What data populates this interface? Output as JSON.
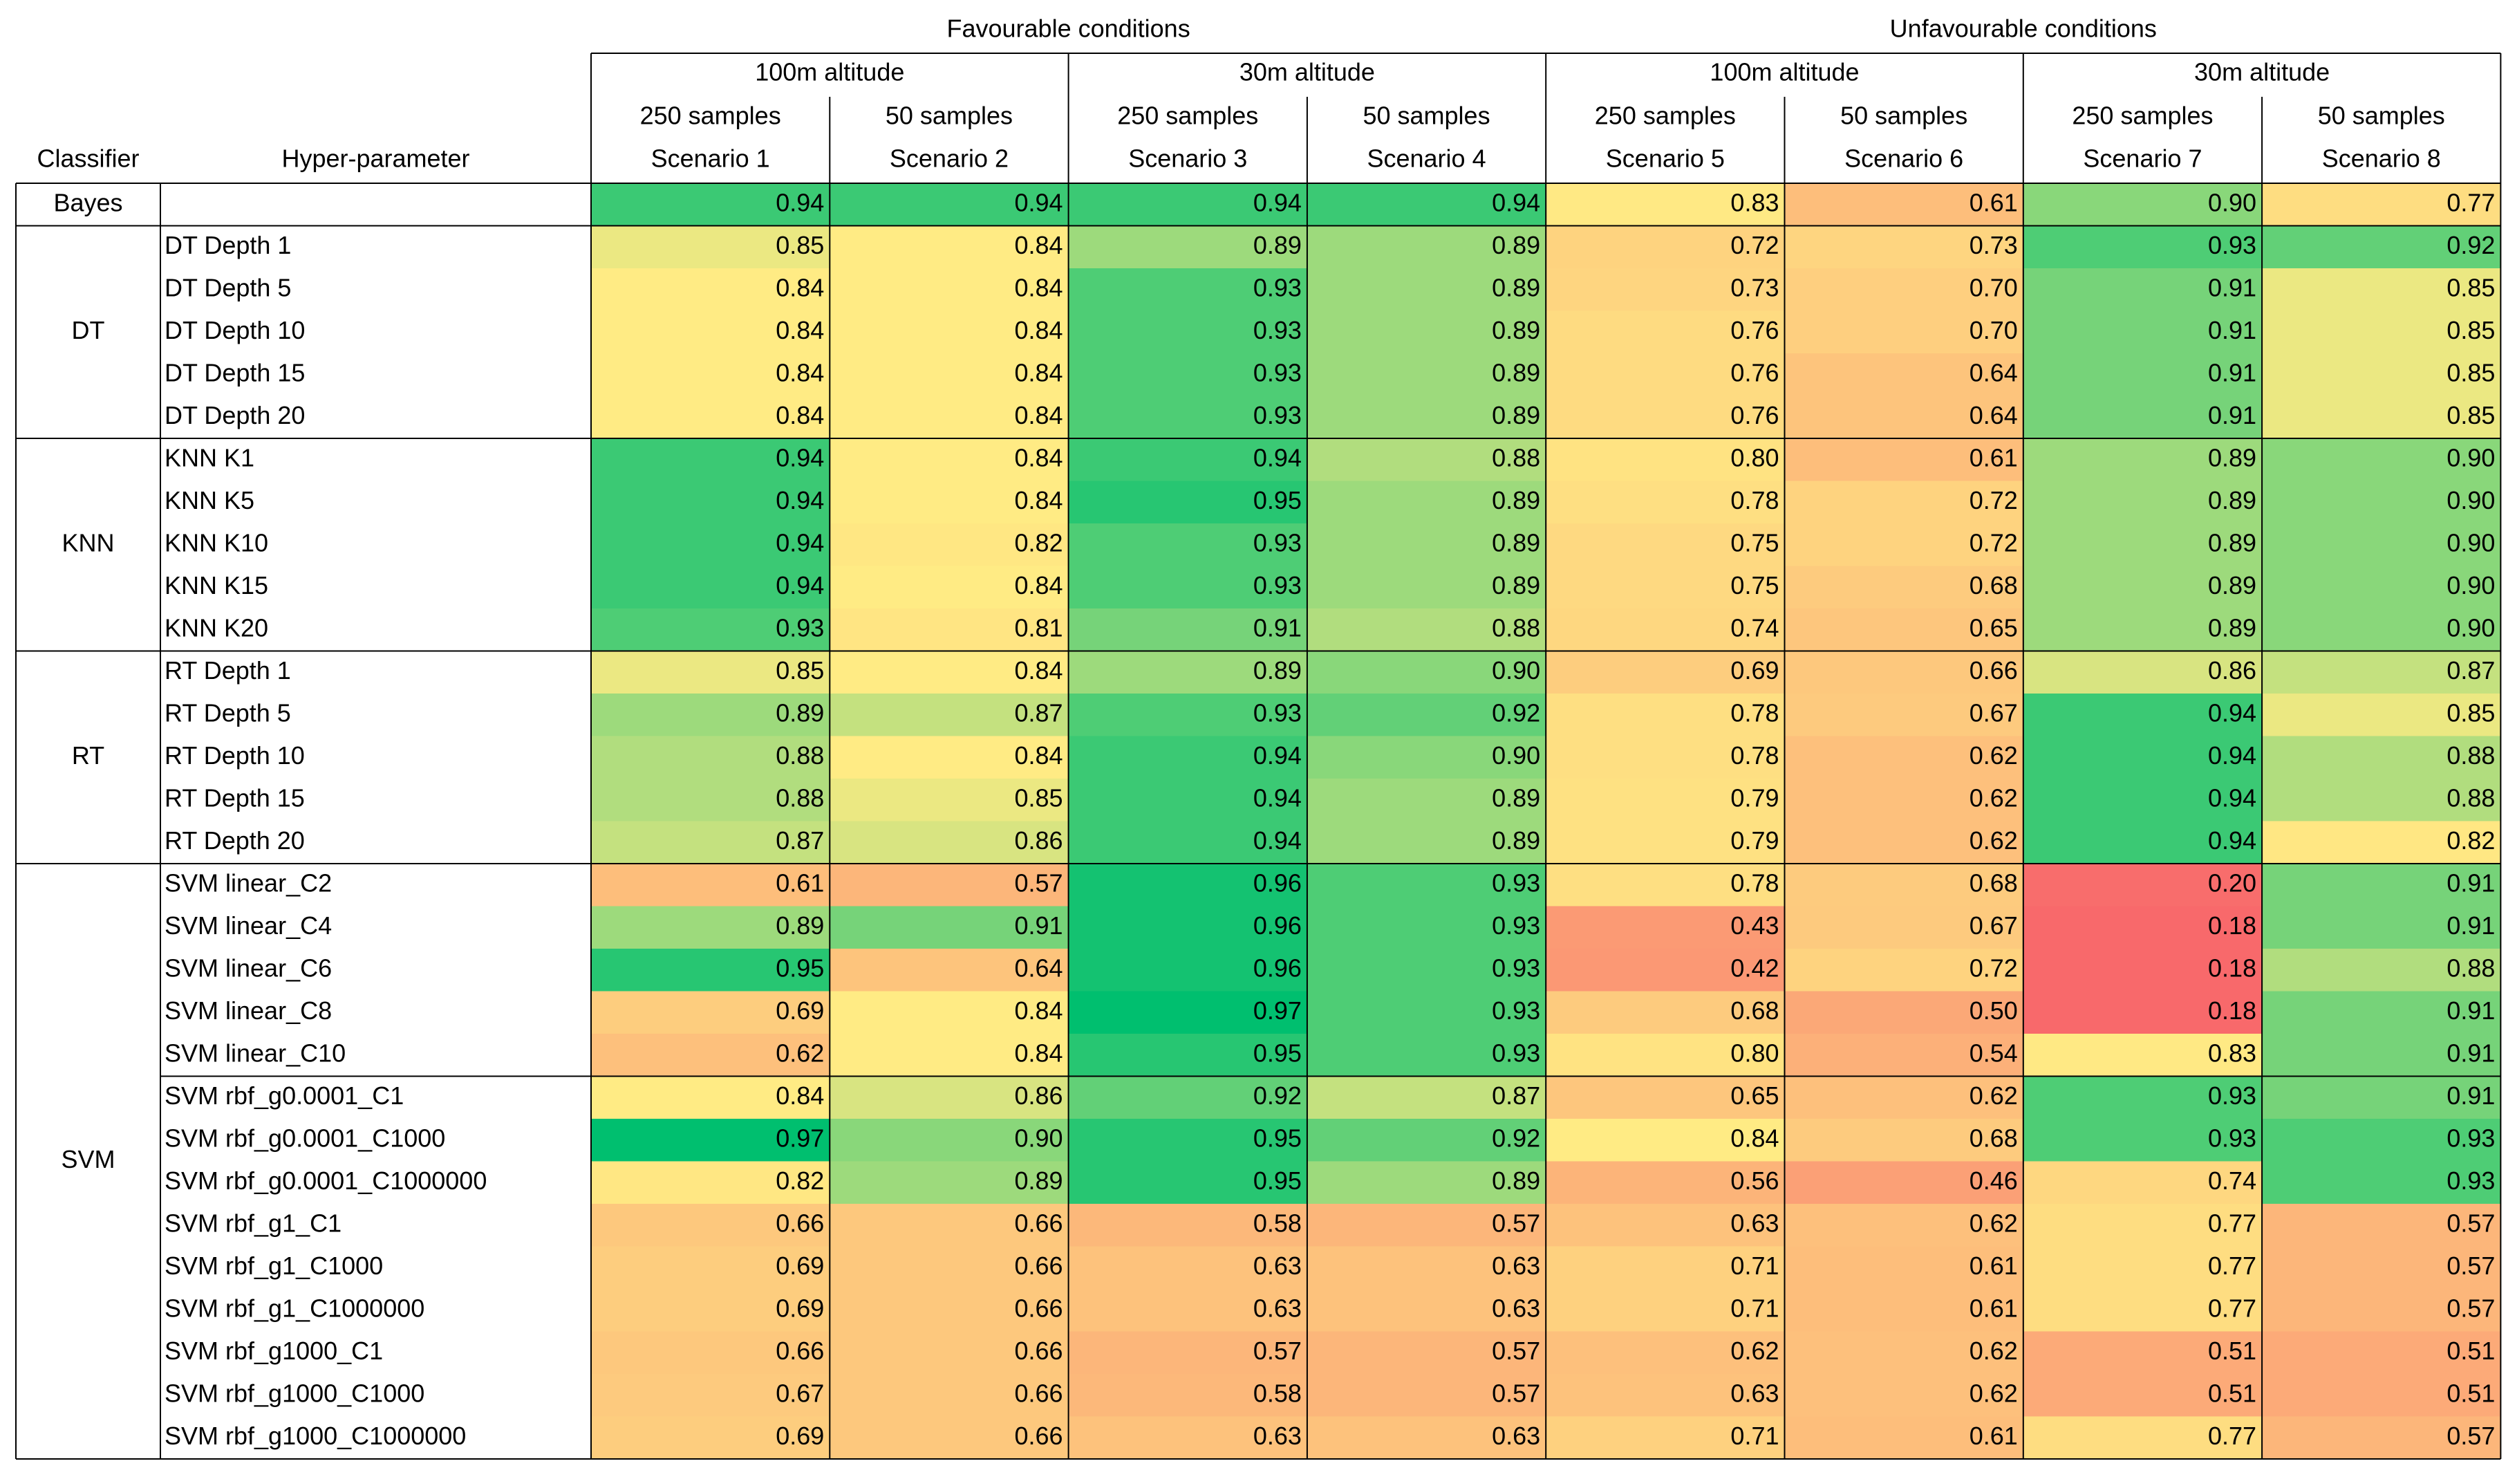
{
  "header": {
    "classifier_label": "Classifier",
    "hyperparameter_label": "Hyper-parameter",
    "conditions": [
      "Favourable conditions",
      "Unfavourable conditions"
    ],
    "altitudes": [
      "100m altitude",
      "30m altitude",
      "100m altitude",
      "30m altitude"
    ],
    "samples": [
      "250 samples",
      "50 samples",
      "250 samples",
      "50 samples",
      "250 samples",
      "50 samples",
      "250 samples",
      "50 samples"
    ],
    "scenarios": [
      "Scenario 1",
      "Scenario 2",
      "Scenario 3",
      "Scenario 4",
      "Scenario 5",
      "Scenario 6",
      "Scenario 7",
      "Scenario 8"
    ]
  },
  "color_scale": {
    "min_color": "#F8696B",
    "mid_color": "#FFEB84",
    "max_color": "#00BF6F"
  },
  "groups": [
    {
      "classifier": "Bayes",
      "blocks": [
        [
          {
            "values": [
              "0.94",
              "0.94",
              "0.94",
              "0.94",
              "0.83",
              "0.61",
              "0.90",
              "0.77"
            ]
          }
        ]
      ]
    },
    {
      "classifier": "DT",
      "blocks": [
        [
          {
            "name": "DT Depth 1",
            "values": [
              "0.85",
              "0.84",
              "0.89",
              "0.89",
              "0.72",
              "0.73",
              "0.93",
              "0.92"
            ]
          },
          {
            "name": "DT Depth 5",
            "values": [
              "0.84",
              "0.84",
              "0.93",
              "0.89",
              "0.73",
              "0.70",
              "0.91",
              "0.85"
            ]
          },
          {
            "name": "DT Depth 10",
            "values": [
              "0.84",
              "0.84",
              "0.93",
              "0.89",
              "0.76",
              "0.70",
              "0.91",
              "0.85"
            ]
          },
          {
            "name": "DT Depth 15",
            "values": [
              "0.84",
              "0.84",
              "0.93",
              "0.89",
              "0.76",
              "0.64",
              "0.91",
              "0.85"
            ]
          },
          {
            "name": "DT Depth 20",
            "values": [
              "0.84",
              "0.84",
              "0.93",
              "0.89",
              "0.76",
              "0.64",
              "0.91",
              "0.85"
            ]
          }
        ]
      ]
    },
    {
      "classifier": "KNN",
      "blocks": [
        [
          {
            "name": "KNN K1",
            "values": [
              "0.94",
              "0.84",
              "0.94",
              "0.88",
              "0.80",
              "0.61",
              "0.89",
              "0.90"
            ]
          },
          {
            "name": "KNN K5",
            "values": [
              "0.94",
              "0.84",
              "0.95",
              "0.89",
              "0.78",
              "0.72",
              "0.89",
              "0.90"
            ]
          },
          {
            "name": "KNN K10",
            "values": [
              "0.94",
              "0.82",
              "0.93",
              "0.89",
              "0.75",
              "0.72",
              "0.89",
              "0.90"
            ]
          },
          {
            "name": "KNN K15",
            "values": [
              "0.94",
              "0.84",
              "0.93",
              "0.89",
              "0.75",
              "0.68",
              "0.89",
              "0.90"
            ]
          },
          {
            "name": "KNN K20",
            "values": [
              "0.93",
              "0.81",
              "0.91",
              "0.88",
              "0.74",
              "0.65",
              "0.89",
              "0.90"
            ]
          }
        ]
      ]
    },
    {
      "classifier": "RT",
      "blocks": [
        [
          {
            "name": "RT Depth 1",
            "values": [
              "0.85",
              "0.84",
              "0.89",
              "0.90",
              "0.69",
              "0.66",
              "0.86",
              "0.87"
            ]
          },
          {
            "name": "RT Depth 5",
            "values": [
              "0.89",
              "0.87",
              "0.93",
              "0.92",
              "0.78",
              "0.67",
              "0.94",
              "0.85"
            ]
          },
          {
            "name": "RT Depth 10",
            "values": [
              "0.88",
              "0.84",
              "0.94",
              "0.90",
              "0.78",
              "0.62",
              "0.94",
              "0.88"
            ]
          },
          {
            "name": "RT Depth 15",
            "values": [
              "0.88",
              "0.85",
              "0.94",
              "0.89",
              "0.79",
              "0.62",
              "0.94",
              "0.88"
            ]
          },
          {
            "name": "RT Depth 20",
            "values": [
              "0.87",
              "0.86",
              "0.94",
              "0.89",
              "0.79",
              "0.62",
              "0.94",
              "0.82"
            ]
          }
        ]
      ]
    },
    {
      "classifier": "SVM",
      "blocks": [
        [
          {
            "name": "SVM linear_C2",
            "values": [
              "0.61",
              "0.57",
              "0.96",
              "0.93",
              "0.78",
              "0.68",
              "0.20",
              "0.91"
            ]
          },
          {
            "name": "SVM linear_C4",
            "values": [
              "0.89",
              "0.91",
              "0.96",
              "0.93",
              "0.43",
              "0.67",
              "0.18",
              "0.91"
            ]
          },
          {
            "name": "SVM linear_C6",
            "values": [
              "0.95",
              "0.64",
              "0.96",
              "0.93",
              "0.42",
              "0.72",
              "0.18",
              "0.88"
            ]
          },
          {
            "name": "SVM linear_C8",
            "values": [
              "0.69",
              "0.84",
              "0.97",
              "0.93",
              "0.68",
              "0.50",
              "0.18",
              "0.91"
            ]
          },
          {
            "name": "SVM linear_C10",
            "values": [
              "0.62",
              "0.84",
              "0.95",
              "0.93",
              "0.80",
              "0.54",
              "0.83",
              "0.91"
            ]
          }
        ],
        [
          {
            "name": "SVM rbf_g0.0001_C1",
            "values": [
              "0.84",
              "0.86",
              "0.92",
              "0.87",
              "0.65",
              "0.62",
              "0.93",
              "0.91"
            ]
          },
          {
            "name": "SVM rbf_g0.0001_C1000",
            "values": [
              "0.97",
              "0.90",
              "0.95",
              "0.92",
              "0.84",
              "0.68",
              "0.93",
              "0.93"
            ]
          },
          {
            "name": "SVM rbf_g0.0001_C1000000",
            "values": [
              "0.82",
              "0.89",
              "0.95",
              "0.89",
              "0.56",
              "0.46",
              "0.74",
              "0.93"
            ]
          },
          {
            "name": "SVM rbf_g1_C1",
            "values": [
              "0.66",
              "0.66",
              "0.58",
              "0.57",
              "0.63",
              "0.62",
              "0.77",
              "0.57"
            ]
          },
          {
            "name": "SVM rbf_g1_C1000",
            "values": [
              "0.69",
              "0.66",
              "0.63",
              "0.63",
              "0.71",
              "0.61",
              "0.77",
              "0.57"
            ]
          },
          {
            "name": "SVM rbf_g1_C1000000",
            "values": [
              "0.69",
              "0.66",
              "0.63",
              "0.63",
              "0.71",
              "0.61",
              "0.77",
              "0.57"
            ]
          },
          {
            "name": "SVM rbf_g1000_C1",
            "values": [
              "0.66",
              "0.66",
              "0.57",
              "0.57",
              "0.62",
              "0.62",
              "0.51",
              "0.51"
            ]
          },
          {
            "name": "SVM rbf_g1000_C1000",
            "values": [
              "0.67",
              "0.66",
              "0.58",
              "0.57",
              "0.63",
              "0.62",
              "0.51",
              "0.51"
            ]
          },
          {
            "name": "SVM rbf_g1000_C1000000",
            "values": [
              "0.69",
              "0.66",
              "0.63",
              "0.63",
              "0.71",
              "0.61",
              "0.77",
              "0.57"
            ]
          }
        ]
      ]
    }
  ]
}
